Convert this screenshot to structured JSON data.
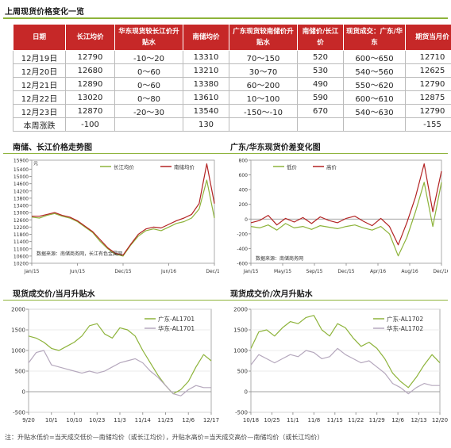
{
  "table": {
    "title": "上周现货价格变化一览",
    "headers": [
      "日期",
      "长江均价",
      "华东现货较长江价升贴水",
      "南储均价",
      "广东现货较南储价升贴水",
      "南储价/长江价",
      "现货成交：广东/华东",
      "期货当月价"
    ],
    "rows": [
      [
        "12月19日",
        "12790",
        "-10～20",
        "13310",
        "70～150",
        "520",
        "600～650",
        "12710"
      ],
      [
        "12月20日",
        "12680",
        "0～60",
        "13210",
        "30～70",
        "530",
        "540～560",
        "12625"
      ],
      [
        "12月21日",
        "12890",
        "0～60",
        "13380",
        "60～200",
        "490",
        "550～620",
        "12790"
      ],
      [
        "12月22日",
        "13020",
        "0～80",
        "13610",
        "10～100",
        "590",
        "600～610",
        "12875"
      ],
      [
        "12月23日",
        "12870",
        "-20～30",
        "13540",
        "-150～-10",
        "670",
        "540～630",
        "12790"
      ],
      [
        "本周涨跌",
        "-100",
        "",
        "130",
        "",
        "",
        "",
        "-155"
      ]
    ]
  },
  "colors": {
    "green": "#8db33a",
    "red": "#b22222",
    "gray": "#b5a8bd",
    "header_red": "#c62828"
  },
  "charts": {
    "c1": {
      "title": "南储、长江价格走势图",
      "unit": "元",
      "source": "数据来源：南储商务网，长江有色金属网",
      "legend": [
        "长江均价",
        "南储均价"
      ]
    },
    "c2": {
      "title": "广东/华东现货价差变化图",
      "source": "数据来源：南储商务网",
      "legend": [
        "低价",
        "高价"
      ]
    },
    "c3": {
      "title": "现货成交价/当月升贴水",
      "legend": [
        "广东-AL1701",
        "华东-AL1701"
      ]
    },
    "c4": {
      "title": "现货成交价/次月升贴水",
      "legend": [
        "广东-AL1702",
        "华东-AL1702"
      ]
    }
  },
  "footnote": "注：升贴水低价=当天成交低价—南储均价（或长江均价），升贴水高价=当天成交高价—南储均价（或长江均价）",
  "chart_data": [
    {
      "type": "line",
      "title": "南储、长江价格走势图",
      "ylabel": "元",
      "ylim": [
        10200,
        15900
      ],
      "yticks": [
        10200,
        10600,
        11000,
        11400,
        11800,
        12200,
        12600,
        13000,
        13400,
        13800,
        14200,
        14600,
        15000,
        15400,
        15900
      ],
      "xticks": [
        "Jan/15",
        "Jun/15",
        "Dec/15",
        "Jun/16",
        "Dec/16"
      ],
      "x": [
        0,
        1,
        2,
        3,
        4,
        5,
        6,
        7,
        8,
        9,
        10,
        11,
        12,
        13,
        14,
        15,
        16,
        17,
        18,
        19,
        20,
        21,
        22,
        23,
        24
      ],
      "series": [
        {
          "name": "长江均价",
          "color": "#8db33a",
          "values": [
            12750,
            12700,
            12850,
            12950,
            12800,
            12700,
            12500,
            12200,
            11900,
            11400,
            11000,
            10700,
            10600,
            11200,
            11700,
            12000,
            12100,
            12000,
            12200,
            12400,
            12500,
            12700,
            13200,
            14800,
            12700
          ]
        },
        {
          "name": "南储均价",
          "color": "#b22222",
          "values": [
            12800,
            12800,
            12900,
            13000,
            12850,
            12750,
            12550,
            12250,
            11950,
            11500,
            11050,
            10750,
            10650,
            11250,
            11800,
            12100,
            12200,
            12150,
            12350,
            12550,
            12700,
            12900,
            13500,
            15700,
            13500
          ]
        }
      ]
    },
    {
      "type": "line",
      "title": "广东/华东现货价差变化图",
      "ylim": [
        -600,
        800
      ],
      "yticks": [
        -600,
        -400,
        -200,
        0,
        200,
        400,
        600,
        800
      ],
      "xticks": [
        "Jan/15",
        "May/15",
        "Sep/15",
        "Dec/15",
        "Apr/16",
        "Aug/16",
        "Dec/16"
      ],
      "series": [
        {
          "name": "低价",
          "color": "#8db33a",
          "values": [
            -100,
            -120,
            -80,
            -150,
            -60,
            -120,
            -100,
            -140,
            -90,
            -110,
            -130,
            -100,
            -80,
            -120,
            -150,
            -100,
            -200,
            -500,
            -250,
            100,
            500,
            -100,
            500
          ]
        },
        {
          "name": "高价",
          "color": "#b22222",
          "values": [
            -50,
            -20,
            50,
            -80,
            10,
            -40,
            20,
            -60,
            30,
            -20,
            -50,
            10,
            40,
            -30,
            -90,
            10,
            -100,
            -350,
            -50,
            300,
            750,
            100,
            650
          ]
        }
      ]
    },
    {
      "type": "line",
      "title": "现货成交价/当月升贴水",
      "ylim": [
        -500,
        2000
      ],
      "yticks": [
        -500,
        0,
        500,
        1000,
        1500,
        2000
      ],
      "xticks": [
        "9/20",
        "10/1",
        "10/10",
        "10/23",
        "11/3",
        "11/14",
        "11/25",
        "12/6",
        "12/17"
      ],
      "series": [
        {
          "name": "广东-AL1701",
          "color": "#8db33a",
          "values": [
            1350,
            1300,
            1200,
            1050,
            1000,
            1100,
            1200,
            1350,
            1600,
            1650,
            1400,
            1300,
            1550,
            1500,
            1350,
            1000,
            700,
            400,
            150,
            -50,
            50,
            250,
            600,
            900,
            750
          ]
        },
        {
          "name": "华东-AL1701",
          "color": "#b5a8bd",
          "values": [
            700,
            950,
            1000,
            650,
            600,
            550,
            500,
            450,
            500,
            450,
            500,
            600,
            700,
            750,
            800,
            700,
            500,
            350,
            150,
            -50,
            -100,
            50,
            150,
            100,
            100
          ]
        }
      ]
    },
    {
      "type": "line",
      "title": "现货成交价/次月升贴水",
      "ylim": [
        -500,
        2000
      ],
      "yticks": [
        -500,
        0,
        500,
        1000,
        1500,
        2000
      ],
      "xticks": [
        "10/18",
        "10/25",
        "11/1",
        "11/8",
        "11/15",
        "11/22",
        "11/29",
        "12/6",
        "12/13",
        "12/20"
      ],
      "series": [
        {
          "name": "广东-AL1702",
          "color": "#8db33a",
          "values": [
            1050,
            1450,
            1500,
            1350,
            1550,
            1700,
            1650,
            1800,
            1850,
            1500,
            1350,
            1650,
            1550,
            1300,
            1100,
            1200,
            1050,
            800,
            450,
            250,
            100,
            350,
            650,
            900,
            700
          ]
        },
        {
          "name": "华东-AL1702",
          "color": "#b5a8bd",
          "values": [
            650,
            900,
            800,
            700,
            800,
            900,
            850,
            1000,
            950,
            800,
            850,
            1050,
            900,
            800,
            700,
            750,
            600,
            450,
            200,
            100,
            -50,
            100,
            200,
            150,
            150
          ]
        }
      ]
    }
  ]
}
